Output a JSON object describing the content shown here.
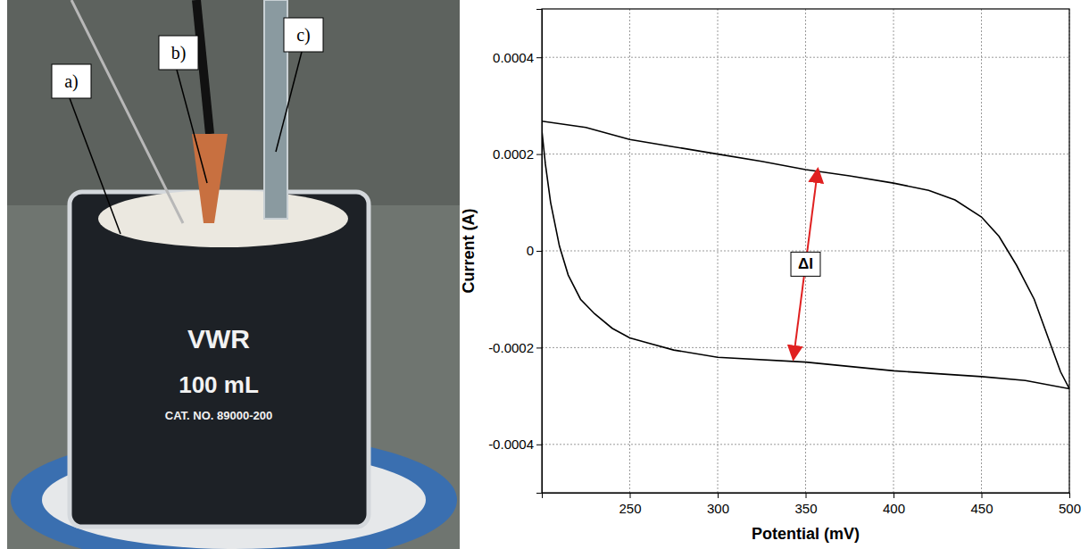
{
  "chart_data": {
    "type": "line",
    "xlabel": "Potential (mV)",
    "ylabel": "Current (A)",
    "x": [
      200,
      225,
      250,
      275,
      300,
      325,
      350,
      375,
      400,
      420,
      435,
      450,
      460,
      470,
      480,
      490,
      495,
      500,
      475,
      450,
      400,
      350,
      300,
      275,
      260,
      250,
      240,
      230,
      222,
      215,
      210,
      205,
      202,
      200
    ],
    "series": [
      {
        "color": "#000000",
        "values": [
          0.000268,
          0.000255,
          0.00023,
          0.000215,
          0.0002,
          0.000185,
          0.000168,
          0.000155,
          0.00014,
          0.000125,
          0.000105,
          7e-05,
          3e-05,
          -3e-05,
          -0.0001,
          -0.0002,
          -0.00025,
          -0.000285,
          -0.000268,
          -0.00026,
          -0.000248,
          -0.00023,
          -0.00022,
          -0.000205,
          -0.00019,
          -0.00018,
          -0.00016,
          -0.00013,
          -0.0001,
          -5e-05,
          1e-05,
          0.0001,
          0.00018,
          0.00025
        ]
      }
    ],
    "xlim": [
      200,
      500
    ],
    "xticks": [
      250,
      300,
      350,
      400,
      450,
      500
    ],
    "ylim": [
      -0.0005,
      0.0005
    ],
    "yticks": [
      -0.0004,
      -0.0002,
      0,
      0.0002,
      0.0004
    ],
    "grid": true,
    "annotations": [
      {
        "text": "ΔI",
        "x": [
          343,
          357
        ],
        "y": [
          -0.000225,
          0.00017
        ],
        "color": "#e02020"
      }
    ]
  },
  "photo": {
    "labels": [
      "a)",
      "b)",
      "c)"
    ],
    "beaker_text": [
      "VWR",
      "100 mL",
      "CAT. NO. 89000-200"
    ]
  }
}
